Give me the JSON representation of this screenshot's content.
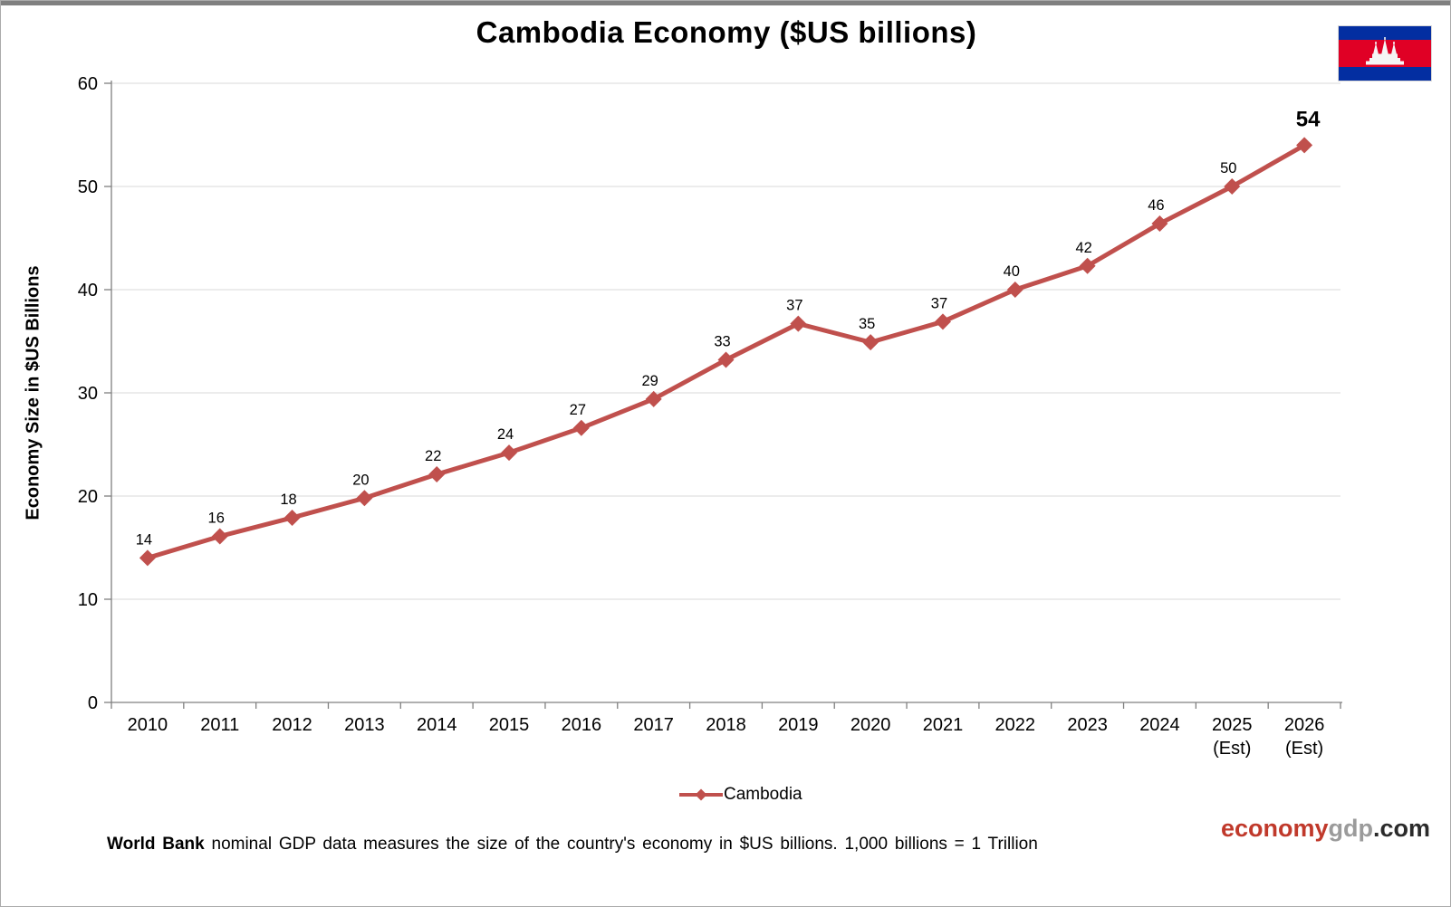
{
  "window": {
    "top_bar_color": "#808080",
    "border_color": "#ababab",
    "background": "#ffffff"
  },
  "header": {
    "title": "Cambodia Economy ($US billions)"
  },
  "flag": {
    "name": "flag-of-cambodia",
    "blue": "#032EA1",
    "red": "#E00025",
    "white": "#F5F5F5"
  },
  "chart_data": {
    "type": "line",
    "title": "Cambodia Economy ($US billions)",
    "xlabel": "",
    "ylabel": "Economy Size in $US Billions",
    "ylim": [
      0,
      60
    ],
    "yticks": [
      0,
      10,
      20,
      30,
      40,
      50,
      60
    ],
    "grid": true,
    "legend_position": "bottom",
    "axis_color": "#808080",
    "grid_color": "#d9d9d9",
    "categories": [
      "2010",
      "2011",
      "2012",
      "2013",
      "2014",
      "2015",
      "2016",
      "2017",
      "2018",
      "2019",
      "2020",
      "2021",
      "2022",
      "2023",
      "2024",
      "2025",
      "2026"
    ],
    "category_sublabels": [
      "",
      "",
      "",
      "",
      "",
      "",
      "",
      "",
      "",
      "",
      "",
      "",
      "",
      "",
      "",
      "(Est)",
      "(Est)"
    ],
    "series": [
      {
        "name": "Cambodia",
        "color": "#C0504D",
        "marker": "diamond",
        "values": [
          14,
          16.1,
          17.9,
          19.8,
          22.1,
          24.2,
          26.6,
          29.4,
          33.2,
          36.7,
          34.9,
          36.9,
          40,
          42.3,
          46.4,
          50,
          54
        ],
        "point_labels": [
          "14",
          "16",
          "18",
          "20",
          "22",
          "24",
          "27",
          "29",
          "33",
          "37",
          "35",
          "37",
          "40",
          "42",
          "46",
          "50",
          "54"
        ]
      }
    ]
  },
  "legend": {
    "label": "Cambodia"
  },
  "footer": {
    "note_bold": "World Bank",
    "note_rest": " nominal GDP data measures the size of the country's economy in $US billions. 1,000 billions = 1 Trillion",
    "brand": {
      "economy": "economy",
      "gdp": "gdp",
      "dotcom": ".com",
      "economy_color": "#C0392B",
      "gdp_color": "#9b9b9b",
      "dotcom_color": "#2b2b2b"
    }
  }
}
